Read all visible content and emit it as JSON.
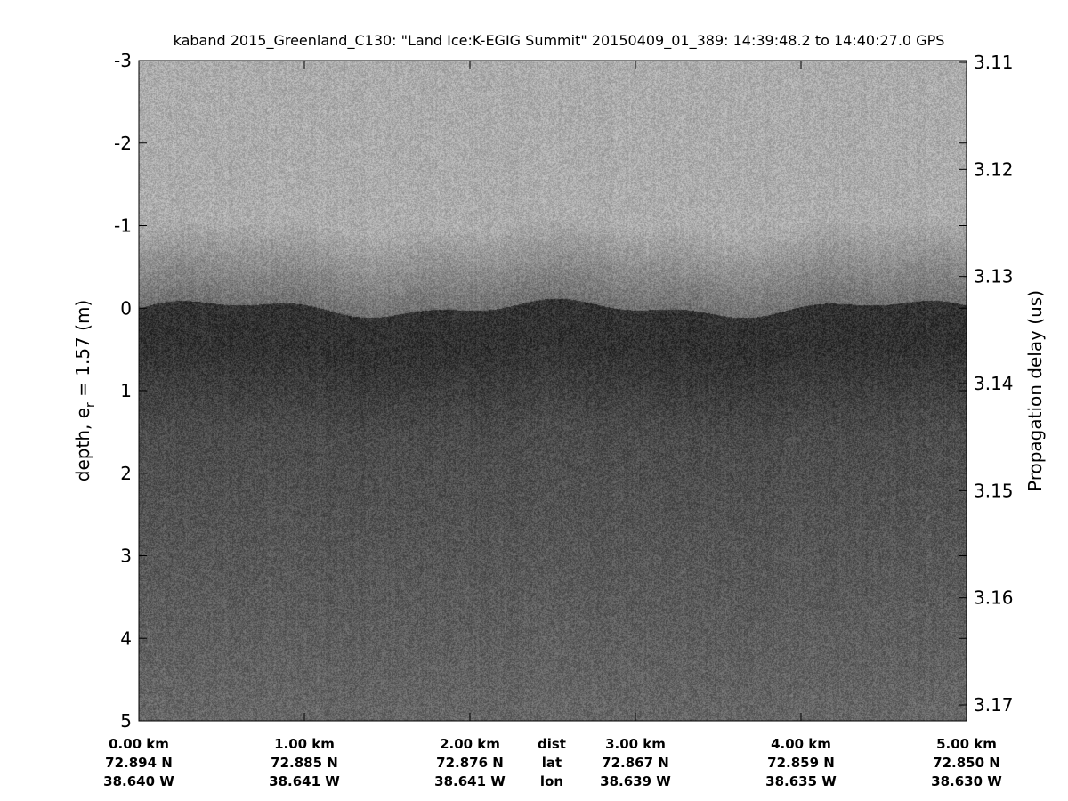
{
  "chart_data": {
    "type": "heatmap",
    "title": "kaband 2015_Greenland_C130: \"Land Ice:K-EGIG Summit\"  20150409_01_389: 14:39:48.2 to 14:40:27.0 GPS",
    "ylabel_left": "depth, e",
    "ylabel_left_sub": "r",
    "ylabel_left_tail": " = 1.57 (m)",
    "ylabel_right": "Propagation delay (us)",
    "ylim_left": [
      -3,
      5
    ],
    "yticks_left": [
      "-3",
      "-2",
      "-1",
      "0",
      "1",
      "2",
      "3",
      "4",
      "5"
    ],
    "ylim_right": [
      3.11,
      3.17
    ],
    "yticks_right": [
      "3.11",
      "3.12",
      "3.13",
      "3.14",
      "3.15",
      "3.16",
      "3.17"
    ],
    "xlim_km": [
      0,
      5
    ],
    "x_rows": {
      "dist": [
        "0.00 km",
        "1.00 km",
        "2.00 km",
        "3.00 km",
        "4.00 km",
        "5.00 km"
      ],
      "lat": [
        "72.894 N",
        "72.885 N",
        "72.876 N",
        "72.867 N",
        "72.859 N",
        "72.850 N"
      ],
      "lon": [
        "38.640 W",
        "38.641 W",
        "38.641 W",
        "38.639 W",
        "38.635 W",
        "38.630 W"
      ]
    },
    "row_labels": [
      "dist",
      "lat",
      "lon"
    ],
    "colormap": "gray",
    "surface_depth_m": 0
  }
}
